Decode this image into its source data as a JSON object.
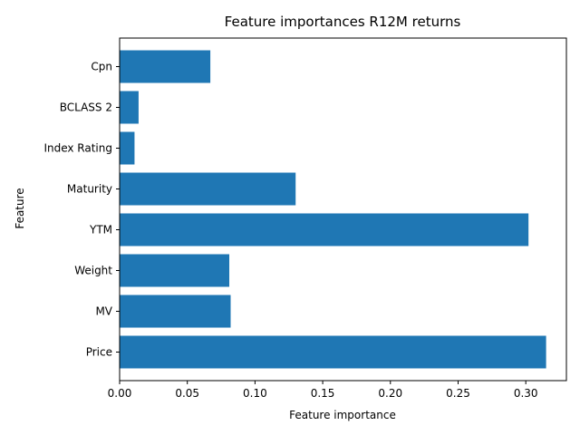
{
  "chart_data": {
    "type": "bar",
    "orientation": "horizontal",
    "title": "Feature importances R12M returns",
    "xlabel": "Feature importance",
    "ylabel": "Feature",
    "categories": [
      "Price",
      "MV",
      "Weight",
      "YTM",
      "Maturity",
      "Index Rating",
      "BCLASS 2",
      "Cpn"
    ],
    "values": [
      0.315,
      0.082,
      0.081,
      0.302,
      0.13,
      0.011,
      0.014,
      0.067
    ],
    "xlim": [
      0.0,
      0.33
    ],
    "xticks": [
      "0.00",
      "0.05",
      "0.10",
      "0.15",
      "0.20",
      "0.25",
      "0.30"
    ],
    "grid": false,
    "bar_color": "#1f77b4"
  }
}
